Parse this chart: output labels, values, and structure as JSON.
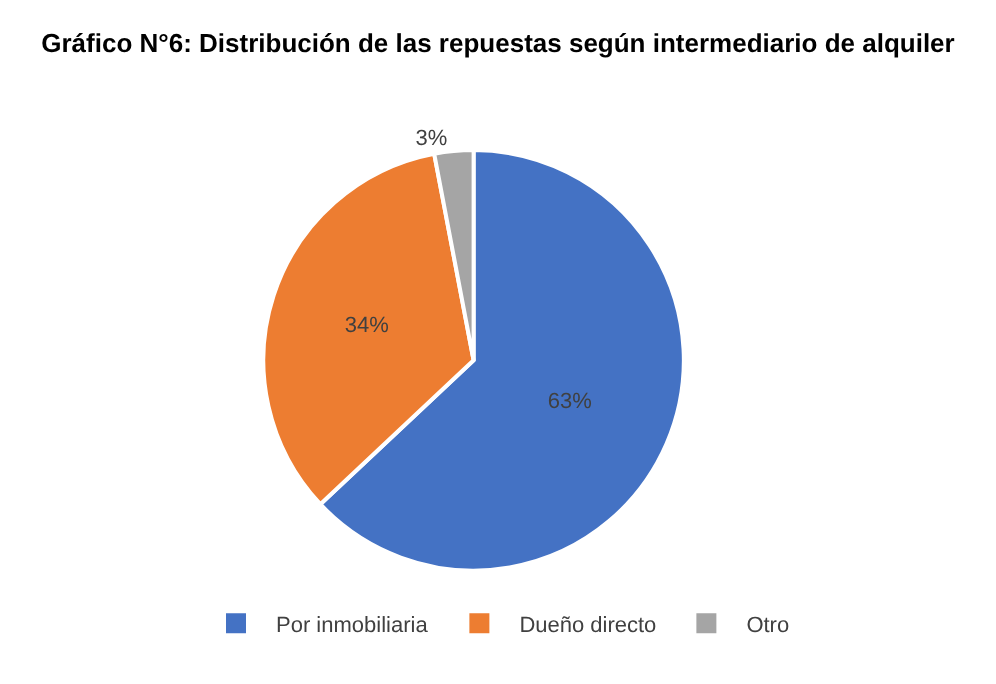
{
  "chart_data": {
    "type": "pie",
    "title": "Gráfico N°6: Distribución de las repuestas según intermediario de alquiler",
    "categories": [
      "Por inmobiliaria",
      "Dueño directo",
      "Otro"
    ],
    "values": [
      63,
      34,
      3
    ],
    "colors": [
      "#4472c4",
      "#ed7d31",
      "#a5a5a5"
    ],
    "value_labels": [
      "63%",
      "34%",
      "3%"
    ],
    "legend": "bottom"
  }
}
